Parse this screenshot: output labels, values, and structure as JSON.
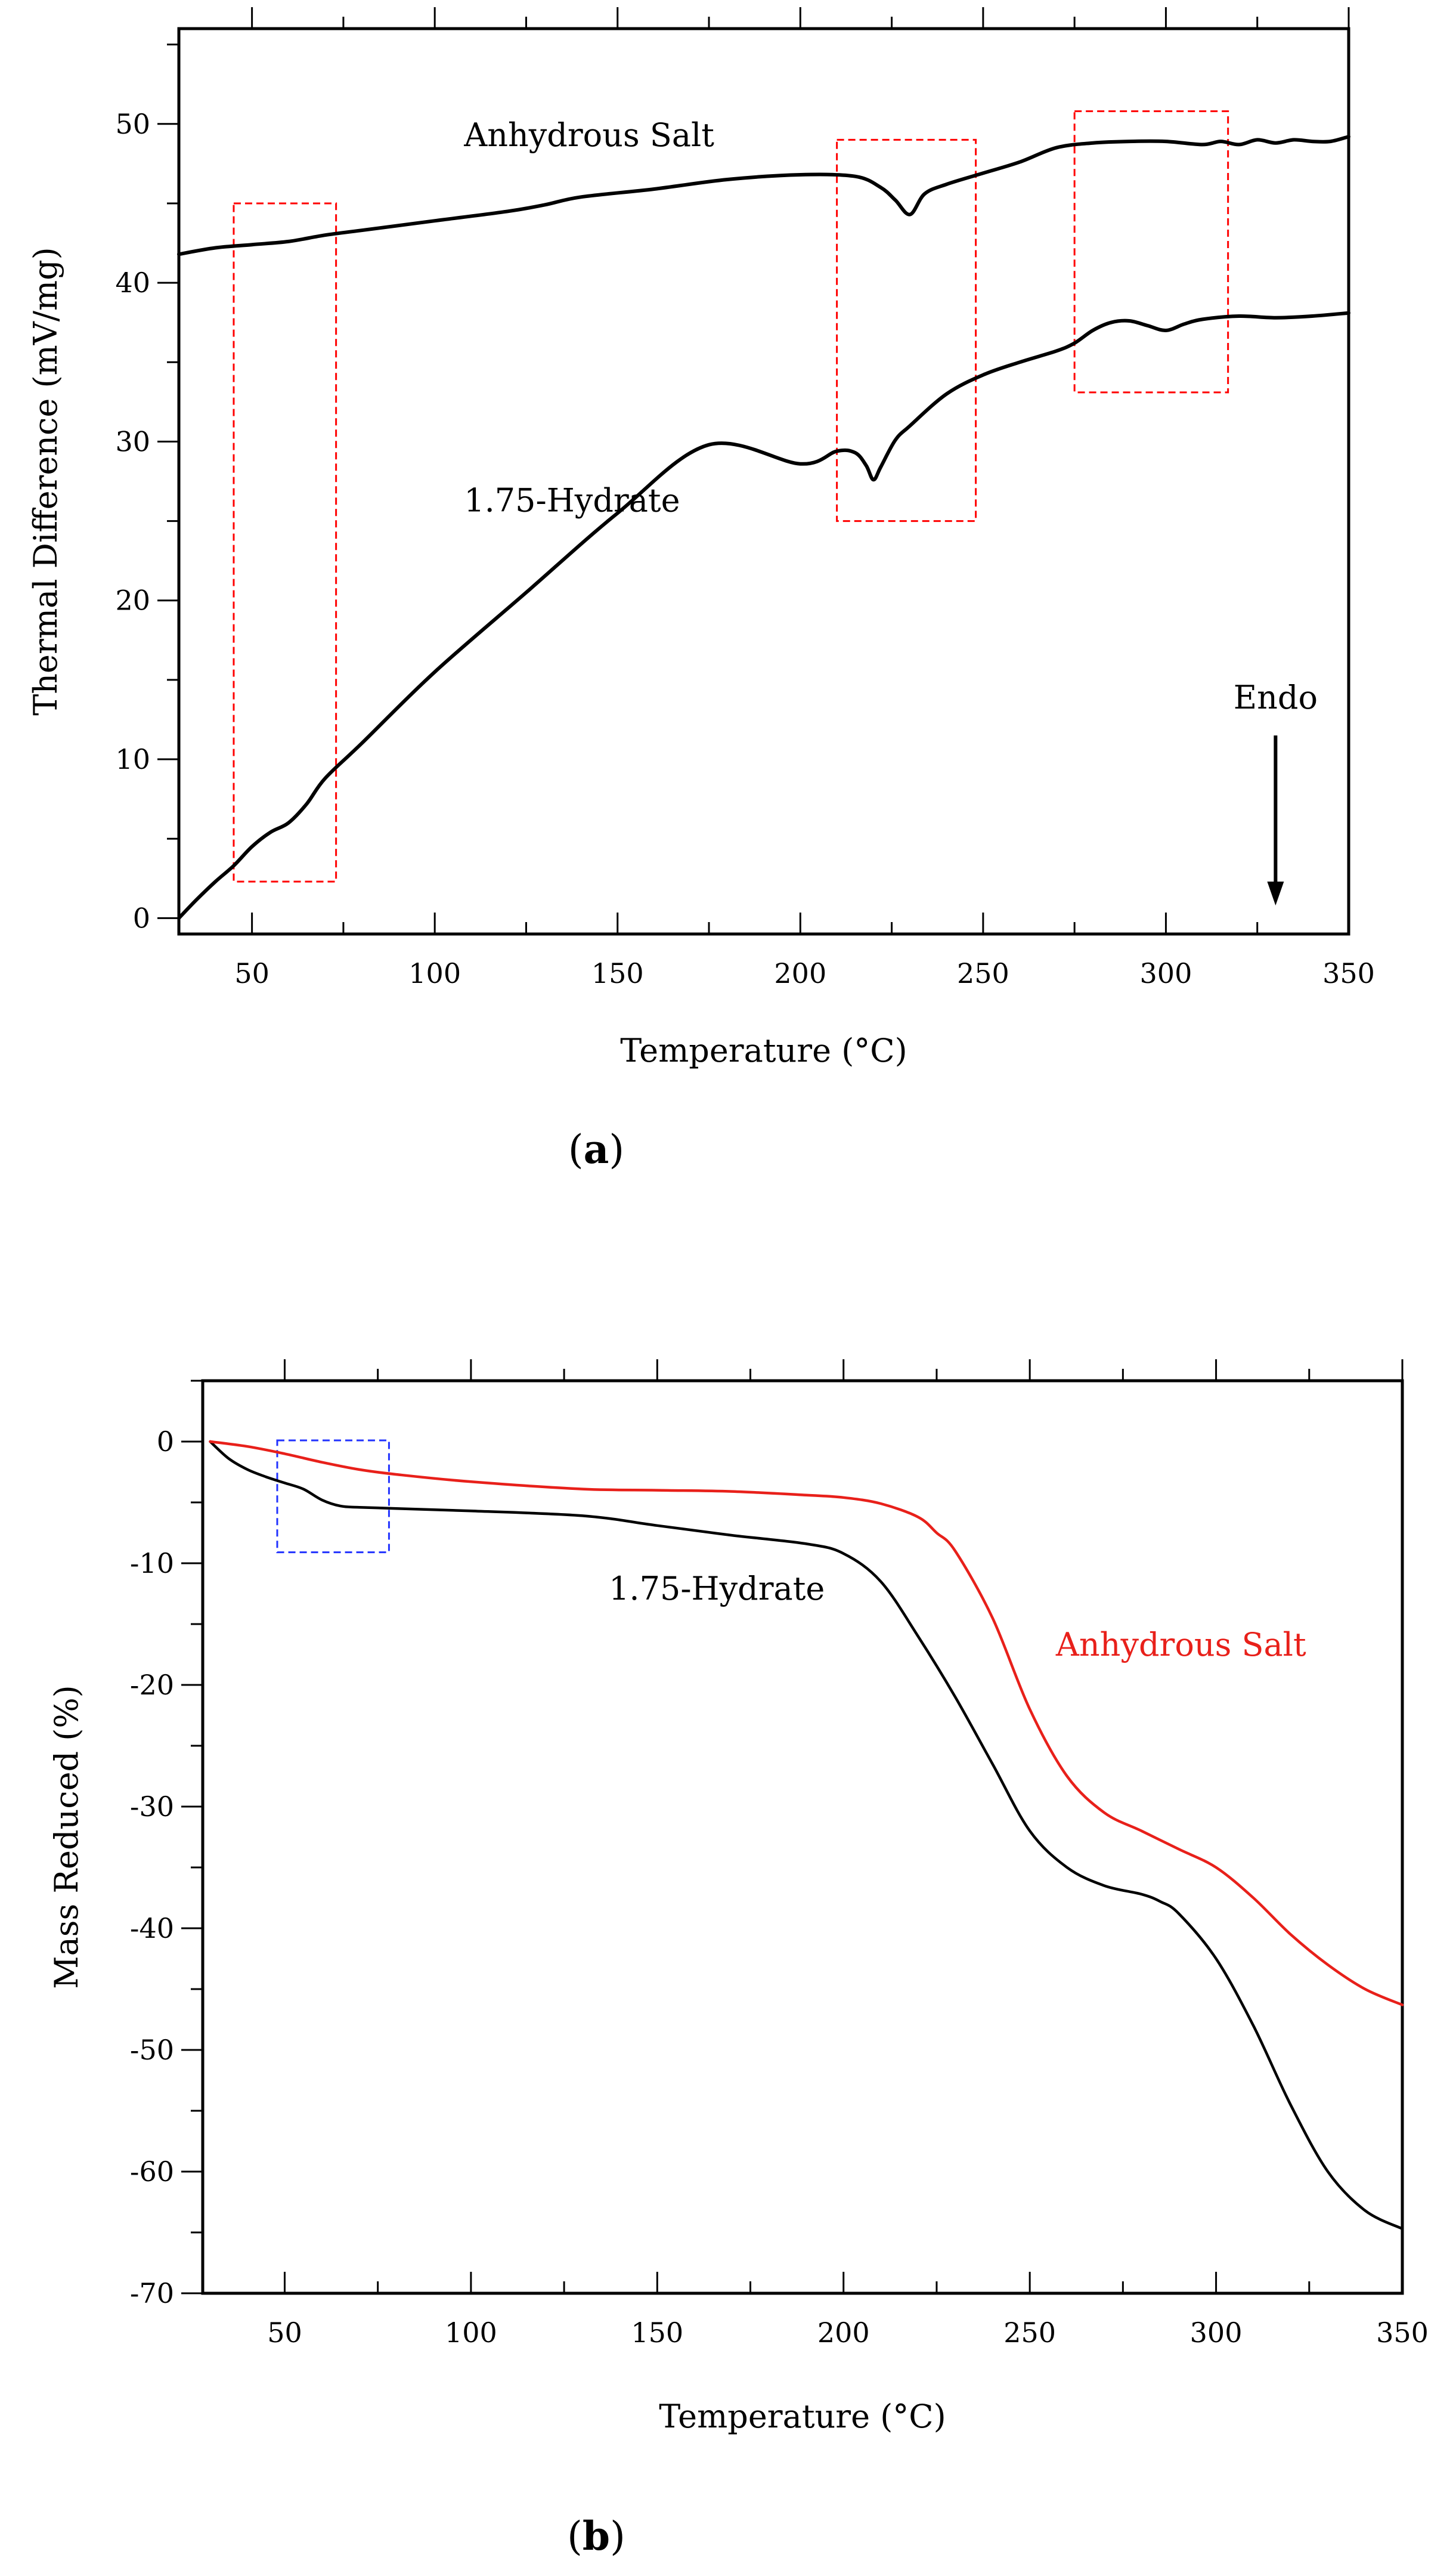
{
  "chart_data": [
    {
      "panel_label_prefix": "(",
      "panel_label": "a",
      "panel_label_suffix": ")",
      "type": "line",
      "title": "",
      "xlabel": "Temperature (°C)",
      "ylabel": "Thermal Difference (mV/mg)",
      "xlim": [
        30,
        350
      ],
      "ylim": [
        -1,
        56
      ],
      "x_ticks": [
        50,
        100,
        150,
        200,
        250,
        300,
        350
      ],
      "y_ticks": [
        0,
        10,
        20,
        30,
        40,
        50
      ],
      "series": [
        {
          "name": "Anhydrous Salt",
          "color": "#000000",
          "x": [
            30,
            40,
            50,
            60,
            70,
            80,
            100,
            120,
            130,
            140,
            160,
            180,
            200,
            215,
            222,
            226,
            230,
            234,
            240,
            250,
            260,
            270,
            280,
            290,
            300,
            310,
            315,
            320,
            325,
            330,
            335,
            340,
            345,
            350
          ],
          "y": [
            41.8,
            42.2,
            42.4,
            42.6,
            43.0,
            43.3,
            43.9,
            44.5,
            44.9,
            45.4,
            45.9,
            46.5,
            46.8,
            46.7,
            46.0,
            45.2,
            44.3,
            45.6,
            46.2,
            46.9,
            47.6,
            48.5,
            48.8,
            48.9,
            48.9,
            48.7,
            48.9,
            48.7,
            49.0,
            48.8,
            49.0,
            48.9,
            48.9,
            49.2
          ]
        },
        {
          "name": "1.75-Hydrate",
          "color": "#000000",
          "x": [
            30,
            35,
            40,
            45,
            50,
            55,
            60,
            65,
            70,
            80,
            100,
            125,
            150,
            175,
            200,
            210,
            215,
            218,
            220,
            222,
            226,
            230,
            240,
            250,
            260,
            270,
            275,
            280,
            285,
            290,
            295,
            300,
            305,
            310,
            320,
            330,
            340,
            350
          ],
          "y": [
            0.0,
            1.2,
            2.3,
            3.3,
            4.5,
            5.4,
            6.0,
            7.2,
            8.8,
            11.0,
            15.5,
            20.5,
            25.5,
            29.8,
            28.6,
            29.4,
            29.3,
            28.5,
            27.6,
            28.4,
            30.1,
            31.0,
            33.0,
            34.2,
            35.0,
            35.7,
            36.2,
            37.0,
            37.5,
            37.6,
            37.3,
            37.0,
            37.4,
            37.7,
            37.9,
            37.8,
            37.9,
            38.1
          ]
        }
      ],
      "annotations": [
        {
          "text": "Anhydrous Salt",
          "x": 108,
          "y": 48.6,
          "color": "#000000"
        },
        {
          "text": "1.75-Hydrate",
          "x": 108,
          "y": 25.6,
          "color": "#000000"
        },
        {
          "text": "Endo",
          "x": 330,
          "y": 13.2,
          "color": "#000000",
          "arrow": {
            "from_y": 11.5,
            "to_y": 0.8
          }
        }
      ],
      "boxes": [
        {
          "x0": 45,
          "x1": 73,
          "y0": 2.3,
          "y1": 45,
          "color": "#ff0000"
        },
        {
          "x0": 210,
          "x1": 248,
          "y0": 25,
          "y1": 49,
          "color": "#ff0000"
        },
        {
          "x0": 275,
          "x1": 317,
          "y0": 33.1,
          "y1": 50.8,
          "color": "#ff0000"
        }
      ]
    },
    {
      "panel_label_prefix": "(",
      "panel_label": "b",
      "panel_label_suffix": ")",
      "type": "line",
      "title": "",
      "xlabel": "Temperature (°C)",
      "ylabel": "Mass Reduced (%)",
      "xlim": [
        28,
        350
      ],
      "ylim": [
        -70,
        5
      ],
      "x_ticks": [
        50,
        100,
        150,
        200,
        250,
        300,
        350
      ],
      "y_ticks": [
        0,
        -10,
        -20,
        -30,
        -40,
        -50,
        -60,
        -70
      ],
      "series": [
        {
          "name": "1.75-Hydrate",
          "color": "#000000",
          "x": [
            30,
            35,
            40,
            45,
            50,
            55,
            60,
            65,
            70,
            80,
            100,
            130,
            150,
            170,
            190,
            200,
            210,
            220,
            230,
            240,
            250,
            260,
            270,
            280,
            285,
            290,
            300,
            310,
            320,
            330,
            340,
            350
          ],
          "y": [
            0.0,
            -1.4,
            -2.3,
            -2.9,
            -3.4,
            -3.9,
            -4.8,
            -5.3,
            -5.4,
            -5.5,
            -5.7,
            -6.1,
            -6.9,
            -7.7,
            -8.4,
            -9.2,
            -11.5,
            -16.0,
            -21.0,
            -26.5,
            -32.0,
            -35.0,
            -36.5,
            -37.2,
            -37.8,
            -38.8,
            -42.5,
            -48.0,
            -54.5,
            -60.0,
            -63.2,
            -64.7
          ]
        },
        {
          "name": "Anhydrous Salt",
          "color": "#e8201a",
          "x": [
            30,
            40,
            50,
            60,
            70,
            80,
            100,
            130,
            150,
            170,
            190,
            200,
            210,
            220,
            225,
            230,
            240,
            250,
            260,
            270,
            280,
            290,
            300,
            310,
            320,
            330,
            340,
            350
          ],
          "y": [
            0.0,
            -0.4,
            -1.0,
            -1.7,
            -2.3,
            -2.7,
            -3.3,
            -3.9,
            -4.0,
            -4.1,
            -4.4,
            -4.6,
            -5.1,
            -6.2,
            -7.5,
            -9.0,
            -14.5,
            -22.0,
            -27.5,
            -30.5,
            -32.0,
            -33.5,
            -35.0,
            -37.5,
            -40.5,
            -43.0,
            -45.0,
            -46.3
          ]
        }
      ],
      "annotations": [
        {
          "text": "1.75-Hydrate",
          "x": 137,
          "y": -13.0,
          "color": "#000000"
        },
        {
          "text": "Anhydrous Salt",
          "x": 257,
          "y": -17.6,
          "color": "#e8201a"
        }
      ],
      "boxes": [
        {
          "x0": 48,
          "x1": 78,
          "y0": -9.1,
          "y1": 0.1,
          "color": "#2233ff"
        }
      ]
    }
  ]
}
